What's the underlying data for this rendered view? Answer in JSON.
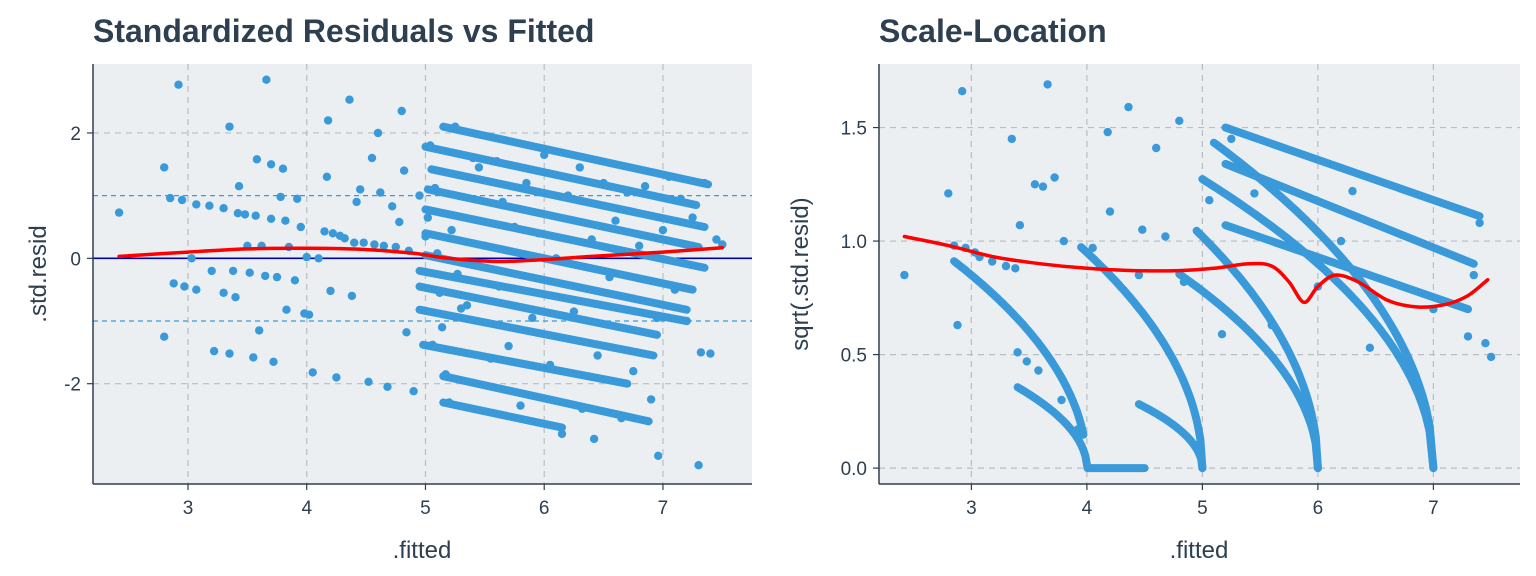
{
  "chart_data": [
    {
      "type": "scatter",
      "title": "Standardized Residuals vs Fitted",
      "xlabel": ".fitted",
      "ylabel": ".std.resid",
      "xlim": [
        2.2,
        7.75
      ],
      "ylim": [
        -3.6,
        3.1
      ],
      "x_ticks": [
        3,
        4,
        5,
        6,
        7
      ],
      "x_tick_labels": [
        "3",
        "4",
        "5",
        "6",
        "7"
      ],
      "y_ticks": [
        -2,
        0,
        2
      ],
      "y_tick_labels": [
        "-2",
        "0",
        "2"
      ],
      "grid": true,
      "reference_lines": {
        "zero_line": 0,
        "dashed_lines": [
          -1,
          1
        ]
      },
      "point_color": "#3a9ad9",
      "smooth_color": "#ff0000",
      "zero_line_color": "#0000aa",
      "band_color": "#3a9ad9",
      "points": [
        [
          2.42,
          0.73
        ],
        [
          2.8,
          -1.25
        ],
        [
          2.8,
          1.45
        ],
        [
          2.85,
          0.96
        ],
        [
          2.88,
          -0.4
        ],
        [
          2.92,
          2.77
        ],
        [
          2.95,
          0.93
        ],
        [
          2.97,
          -0.45
        ],
        [
          3.03,
          0.0
        ],
        [
          3.07,
          0.86
        ],
        [
          3.07,
          -0.5
        ],
        [
          3.18,
          0.84
        ],
        [
          3.2,
          -0.2
        ],
        [
          3.22,
          -1.48
        ],
        [
          3.3,
          0.8
        ],
        [
          3.3,
          -0.55
        ],
        [
          3.35,
          2.1
        ],
        [
          3.35,
          -1.52
        ],
        [
          3.38,
          -0.2
        ],
        [
          3.4,
          -0.62
        ],
        [
          3.42,
          0.72
        ],
        [
          3.43,
          1.15
        ],
        [
          3.48,
          0.7
        ],
        [
          3.5,
          0.2
        ],
        [
          3.52,
          -0.23
        ],
        [
          3.55,
          -1.58
        ],
        [
          3.57,
          0.68
        ],
        [
          3.58,
          1.58
        ],
        [
          3.6,
          -1.15
        ],
        [
          3.62,
          0.2
        ],
        [
          3.65,
          -0.28
        ],
        [
          3.66,
          2.85
        ],
        [
          3.7,
          1.5
        ],
        [
          3.7,
          0.63
        ],
        [
          3.72,
          -1.65
        ],
        [
          3.75,
          -0.3
        ],
        [
          3.78,
          0.98
        ],
        [
          3.8,
          1.43
        ],
        [
          3.82,
          0.6
        ],
        [
          3.83,
          -0.82
        ],
        [
          3.85,
          0.18
        ],
        [
          3.9,
          -0.35
        ],
        [
          3.92,
          0.95
        ],
        [
          3.95,
          0.5
        ],
        [
          3.98,
          -0.88
        ],
        [
          4.0,
          0.02
        ],
        [
          4.02,
          -0.9
        ],
        [
          4.05,
          -1.82
        ],
        [
          4.1,
          0.0
        ],
        [
          4.15,
          0.43
        ],
        [
          4.17,
          1.3
        ],
        [
          4.18,
          2.2
        ],
        [
          4.2,
          -0.52
        ],
        [
          4.22,
          0.4
        ],
        [
          4.25,
          -1.9
        ],
        [
          4.28,
          0.36
        ],
        [
          4.32,
          0.32
        ],
        [
          4.36,
          2.53
        ],
        [
          4.38,
          -0.6
        ],
        [
          4.4,
          0.25
        ],
        [
          4.42,
          0.9
        ],
        [
          4.45,
          1.1
        ],
        [
          4.48,
          0.25
        ],
        [
          4.52,
          -1.97
        ],
        [
          4.55,
          1.6
        ],
        [
          4.57,
          0.22
        ],
        [
          4.6,
          2.0
        ],
        [
          4.62,
          1.05
        ],
        [
          4.65,
          0.2
        ],
        [
          4.68,
          -2.05
        ],
        [
          4.72,
          0.83
        ],
        [
          4.75,
          0.18
        ],
        [
          4.78,
          0.58
        ],
        [
          4.8,
          2.35
        ],
        [
          4.82,
          1.4
        ],
        [
          4.84,
          -1.18
        ],
        [
          4.86,
          0.12
        ],
        [
          4.9,
          -2.12
        ],
        [
          4.95,
          1.0
        ],
        [
          5.0,
          0.35
        ],
        [
          5.02,
          0.65
        ],
        [
          5.04,
          1.8
        ],
        [
          5.06,
          -1.38
        ],
        [
          5.08,
          1.12
        ],
        [
          5.1,
          0.08
        ],
        [
          5.12,
          -0.55
        ],
        [
          5.14,
          -1.1
        ],
        [
          5.17,
          -1.85
        ],
        [
          5.2,
          -2.3
        ],
        [
          5.22,
          0.45
        ],
        [
          5.25,
          2.1
        ],
        [
          5.27,
          -0.25
        ],
        [
          5.3,
          -0.8
        ],
        [
          5.35,
          -0.75
        ],
        [
          5.4,
          1.6
        ],
        [
          5.45,
          1.45
        ],
        [
          5.5,
          0.2
        ],
        [
          5.55,
          -1.6
        ],
        [
          5.6,
          1.55
        ],
        [
          5.62,
          -0.45
        ],
        [
          5.65,
          0.9
        ],
        [
          5.7,
          -1.4
        ],
        [
          5.75,
          0.5
        ],
        [
          5.8,
          -2.35
        ],
        [
          5.85,
          1.2
        ],
        [
          5.9,
          -0.95
        ],
        [
          5.95,
          0.4
        ],
        [
          6.0,
          1.65
        ],
        [
          6.05,
          -1.7
        ],
        [
          6.1,
          0.0
        ],
        [
          6.15,
          -2.8
        ],
        [
          6.2,
          1.0
        ],
        [
          6.25,
          -0.85
        ],
        [
          6.3,
          1.45
        ],
        [
          6.32,
          -2.4
        ],
        [
          6.4,
          0.3
        ],
        [
          6.42,
          -2.88
        ],
        [
          6.45,
          -1.55
        ],
        [
          6.5,
          1.2
        ],
        [
          6.55,
          -0.3
        ],
        [
          6.6,
          0.6
        ],
        [
          6.65,
          -2.55
        ],
        [
          6.7,
          1.05
        ],
        [
          6.75,
          -1.8
        ],
        [
          6.8,
          0.2
        ],
        [
          6.85,
          1.15
        ],
        [
          6.9,
          -2.25
        ],
        [
          6.95,
          -0.95
        ],
        [
          6.96,
          -3.15
        ],
        [
          7.0,
          0.45
        ],
        [
          7.05,
          1.3
        ],
        [
          7.1,
          -0.5
        ],
        [
          7.15,
          0.95
        ],
        [
          7.2,
          -1.0
        ],
        [
          7.25,
          0.65
        ],
        [
          7.3,
          -3.3
        ],
        [
          7.32,
          -1.5
        ],
        [
          7.35,
          1.2
        ],
        [
          7.4,
          -1.52
        ],
        [
          7.45,
          0.3
        ],
        [
          7.5,
          0.22
        ]
      ],
      "bands": [
        {
          "x": [
            5.15,
            7.38
          ],
          "y": [
            2.1,
            1.18
          ]
        },
        {
          "x": [
            5.0,
            7.28
          ],
          "y": [
            1.78,
            0.85
          ]
        },
        {
          "x": [
            5.05,
            7.35
          ],
          "y": [
            1.42,
            0.5
          ]
        },
        {
          "x": [
            5.02,
            7.3
          ],
          "y": [
            1.1,
            0.18
          ]
        },
        {
          "x": [
            5.0,
            7.35
          ],
          "y": [
            0.78,
            -0.15
          ]
        },
        {
          "x": [
            5.0,
            7.25
          ],
          "y": [
            0.4,
            -0.5
          ]
        },
        {
          "x": [
            5.0,
            7.2
          ],
          "y": [
            0.05,
            -0.82
          ]
        },
        {
          "x": [
            4.95,
            7.2
          ],
          "y": [
            -0.2,
            -1.0
          ]
        },
        {
          "x": [
            4.95,
            6.95
          ],
          "y": [
            -0.45,
            -1.22
          ]
        },
        {
          "x": [
            4.95,
            6.92
          ],
          "y": [
            -0.82,
            -1.55
          ]
        },
        {
          "x": [
            4.98,
            6.7
          ],
          "y": [
            -1.38,
            -2.0
          ]
        },
        {
          "x": [
            5.15,
            6.88
          ],
          "y": [
            -1.88,
            -2.6
          ]
        },
        {
          "x": [
            5.15,
            6.15
          ],
          "y": [
            -2.3,
            -2.7
          ]
        }
      ],
      "smooth_line": {
        "x": [
          2.42,
          3.0,
          3.5,
          4.0,
          4.5,
          4.9,
          5.2,
          5.6,
          6.0,
          6.4,
          7.0,
          7.5
        ],
        "y": [
          0.03,
          0.1,
          0.15,
          0.16,
          0.14,
          0.08,
          0.0,
          -0.05,
          -0.02,
          0.03,
          0.1,
          0.17
        ]
      }
    },
    {
      "type": "scatter",
      "title": "Scale-Location",
      "xlabel": ".fitted",
      "ylabel": "sqrt(.std.resid)",
      "xlim": [
        2.2,
        7.75
      ],
      "ylim": [
        -0.07,
        1.78
      ],
      "x_ticks": [
        3,
        4,
        5,
        6,
        7
      ],
      "x_tick_labels": [
        "3",
        "4",
        "5",
        "6",
        "7"
      ],
      "y_ticks": [
        0.0,
        0.5,
        1.0,
        1.5
      ],
      "y_tick_labels": [
        "0.0",
        "0.5",
        "1.0",
        "1.5"
      ],
      "grid": true,
      "point_color": "#3a9ad9",
      "smooth_color": "#ff0000",
      "points": [
        [
          2.42,
          0.85
        ],
        [
          2.8,
          1.21
        ],
        [
          2.85,
          0.98
        ],
        [
          2.88,
          0.63
        ],
        [
          2.92,
          1.66
        ],
        [
          2.95,
          0.97
        ],
        [
          3.03,
          0.95
        ],
        [
          3.07,
          0.93
        ],
        [
          3.18,
          0.91
        ],
        [
          3.3,
          0.89
        ],
        [
          3.35,
          1.45
        ],
        [
          3.38,
          0.88
        ],
        [
          3.4,
          0.51
        ],
        [
          3.42,
          1.07
        ],
        [
          3.48,
          0.47
        ],
        [
          3.55,
          1.25
        ],
        [
          3.58,
          0.43
        ],
        [
          3.62,
          1.24
        ],
        [
          3.66,
          1.69
        ],
        [
          3.72,
          1.28
        ],
        [
          3.78,
          0.3
        ],
        [
          3.8,
          1.0
        ],
        [
          3.92,
          0.17
        ],
        [
          4.05,
          0.97
        ],
        [
          4.18,
          1.48
        ],
        [
          4.2,
          1.13
        ],
        [
          4.36,
          1.59
        ],
        [
          4.45,
          0.85
        ],
        [
          4.48,
          1.05
        ],
        [
          4.6,
          1.41
        ],
        [
          4.68,
          1.02
        ],
        [
          4.8,
          1.53
        ],
        [
          4.84,
          0.82
        ],
        [
          5.06,
          1.18
        ],
        [
          5.17,
          0.59
        ],
        [
          5.25,
          1.45
        ],
        [
          5.45,
          1.21
        ],
        [
          5.6,
          0.63
        ],
        [
          6.0,
          0.8
        ],
        [
          6.2,
          1.0
        ],
        [
          6.3,
          1.22
        ],
        [
          6.45,
          0.53
        ],
        [
          7.0,
          0.7
        ],
        [
          7.3,
          0.58
        ],
        [
          7.35,
          0.85
        ],
        [
          7.4,
          1.08
        ],
        [
          7.45,
          0.55
        ],
        [
          7.5,
          0.49
        ]
      ],
      "curves": [
        {
          "x0": 2.85,
          "x1": 3.97,
          "a": 0.85,
          "c": 4.0
        },
        {
          "x0": 3.4,
          "x1": 4.5,
          "a": 0.46,
          "c": 4.0
        },
        {
          "x0": 4.45,
          "x1": 5.0,
          "a": 0.38,
          "c": 5.0
        },
        {
          "x0": 3.95,
          "x1": 5.0,
          "a": 0.95,
          "c": 5.0
        },
        {
          "x0": 4.8,
          "x1": 6.0,
          "a": 0.78,
          "c": 6.0
        },
        {
          "x0": 4.95,
          "x1": 6.0,
          "a": 1.02,
          "c": 6.0
        },
        {
          "x0": 5.0,
          "x1": 7.0,
          "a": 0.9,
          "c": 7.0
        },
        {
          "x0": 5.1,
          "x1": 7.0,
          "a": 1.04,
          "c": 7.0
        }
      ],
      "lines": [
        {
          "x": [
            5.2,
            7.4
          ],
          "y": [
            1.5,
            1.11
          ]
        },
        {
          "x": [
            5.2,
            7.35
          ],
          "y": [
            1.34,
            0.9
          ]
        },
        {
          "x": [
            5.2,
            7.3
          ],
          "y": [
            1.07,
            0.7
          ]
        }
      ],
      "smooth_line": {
        "x": [
          2.42,
          2.8,
          3.2,
          3.6,
          4.0,
          4.4,
          4.8,
          5.1,
          5.4,
          5.6,
          5.75,
          5.88,
          6.0,
          6.15,
          6.35,
          6.6,
          6.85,
          7.1,
          7.3,
          7.47
        ],
        "y": [
          1.02,
          0.98,
          0.93,
          0.9,
          0.88,
          0.87,
          0.87,
          0.88,
          0.9,
          0.89,
          0.82,
          0.73,
          0.8,
          0.85,
          0.82,
          0.74,
          0.71,
          0.72,
          0.76,
          0.83
        ]
      }
    }
  ]
}
